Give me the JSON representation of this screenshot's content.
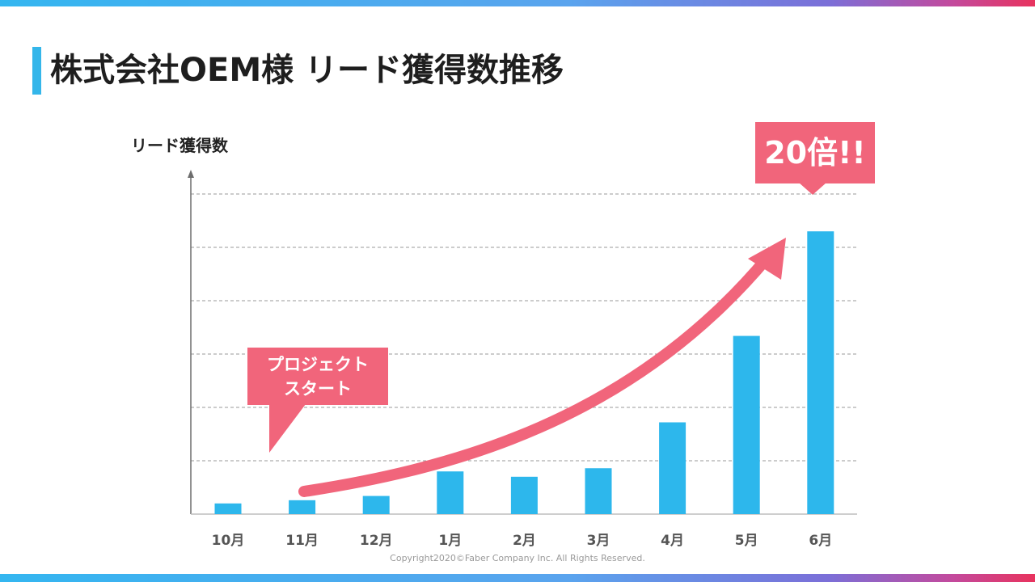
{
  "title": "株式会社OEM様 リード獲得数推移",
  "footer": {
    "copyright": "Copyright2020©Faber Company Inc. All Rights Reserved."
  },
  "annotations": {
    "start_line1": "プロジェクト",
    "start_line2": "スタート",
    "growth": "20倍!!"
  },
  "colors": {
    "bar": "#2db7ec",
    "accent": "#f1657b",
    "title_accent": "#34b6ea",
    "gridline": "#9a9a9a"
  },
  "chart_data": {
    "type": "bar",
    "categories": [
      "10月",
      "11月",
      "12月",
      "1月",
      "2月",
      "3月",
      "4月",
      "5月",
      "6月"
    ],
    "values": [
      1,
      1.3,
      1.7,
      4,
      3.5,
      4.3,
      8.6,
      16.7,
      26.5
    ],
    "ylabel": "リード獲得数",
    "xlabel": "",
    "ylim": [
      0,
      30
    ],
    "grid": true
  }
}
